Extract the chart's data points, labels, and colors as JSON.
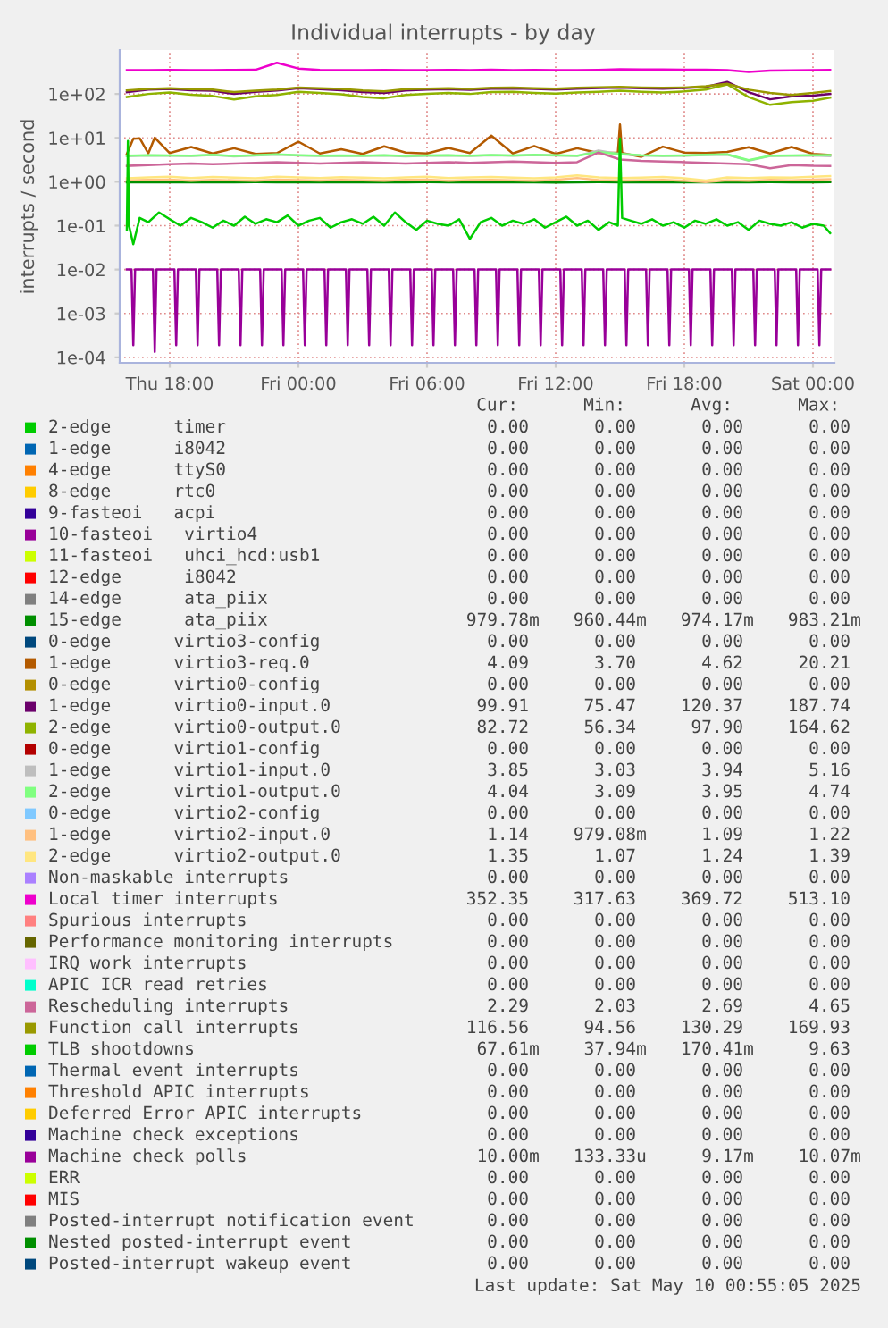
{
  "chart_data": {
    "type": "line",
    "title": "Individual interrupts - by day",
    "ylabel": "interrupts / second",
    "log": "y",
    "grid": true,
    "legend": "bottom",
    "xlim": [
      "2025-05-08T15:40",
      "2025-05-10T01:00"
    ],
    "ylim": [
      7.5e-05,
      1000
    ],
    "xticks": [
      {
        "value": "2025-05-08T18:00",
        "label": "Thu 18:00"
      },
      {
        "value": "2025-05-09T00:00",
        "label": "Fri 00:00"
      },
      {
        "value": "2025-05-09T06:00",
        "label": "Fri 06:00"
      },
      {
        "value": "2025-05-09T12:00",
        "label": "Fri 12:00"
      },
      {
        "value": "2025-05-09T18:00",
        "label": "Fri 18:00"
      },
      {
        "value": "2025-05-10T00:00",
        "label": "Sat 00:00"
      }
    ],
    "yticks": [
      {
        "value": 0.0001,
        "label": "1e-04"
      },
      {
        "value": 0.001,
        "label": "1e-03"
      },
      {
        "value": 0.01,
        "label": "1e-02"
      },
      {
        "value": 0.1,
        "label": "1e-01"
      },
      {
        "value": 1,
        "label": "1e+00"
      },
      {
        "value": 10,
        "label": "1e+01"
      },
      {
        "value": 100,
        "label": "1e+02"
      }
    ],
    "x": [
      "2025-05-08T16:00",
      "2025-05-08T17:00",
      "2025-05-08T18:00",
      "2025-05-08T19:00",
      "2025-05-08T20:00",
      "2025-05-08T21:00",
      "2025-05-08T22:00",
      "2025-05-08T23:00",
      "2025-05-09T00:00",
      "2025-05-09T01:00",
      "2025-05-09T02:00",
      "2025-05-09T03:00",
      "2025-05-09T04:00",
      "2025-05-09T05:00",
      "2025-05-09T06:00",
      "2025-05-09T07:00",
      "2025-05-09T08:00",
      "2025-05-09T09:00",
      "2025-05-09T10:00",
      "2025-05-09T11:00",
      "2025-05-09T12:00",
      "2025-05-09T13:00",
      "2025-05-09T14:00",
      "2025-05-09T15:00",
      "2025-05-09T16:00",
      "2025-05-09T17:00",
      "2025-05-09T18:00",
      "2025-05-09T19:00",
      "2025-05-09T20:00",
      "2025-05-09T21:00",
      "2025-05-09T22:00",
      "2025-05-09T23:00",
      "2025-05-10T00:00",
      "2025-05-10T00:48"
    ],
    "series": [
      {
        "name": "2-edge      timer",
        "color": "#00cc00",
        "values": [
          null,
          null,
          null,
          null,
          null,
          null,
          null,
          null,
          null,
          null,
          null,
          null,
          null,
          null,
          null,
          null,
          null,
          null,
          null,
          null,
          null,
          null,
          null,
          null,
          null,
          null,
          null,
          null,
          null,
          null,
          null,
          null,
          null,
          null
        ]
      },
      {
        "name": "1-edge      i8042",
        "color": "#0066b3",
        "values": [
          null,
          null,
          null,
          null,
          null,
          null,
          null,
          null,
          null,
          null,
          null,
          null,
          null,
          null,
          null,
          null,
          null,
          null,
          null,
          null,
          null,
          null,
          null,
          null,
          null,
          null,
          null,
          null,
          null,
          null,
          null,
          null,
          null,
          null
        ]
      },
      {
        "name": "4-edge      ttyS0",
        "color": "#ff8000",
        "values": [
          null,
          null,
          null,
          null,
          null,
          null,
          null,
          null,
          null,
          null,
          null,
          null,
          null,
          null,
          null,
          null,
          null,
          null,
          null,
          null,
          null,
          null,
          null,
          null,
          null,
          null,
          null,
          null,
          null,
          null,
          null,
          null,
          null,
          null
        ]
      },
      {
        "name": "8-edge      rtc0",
        "color": "#ffcc00",
        "values": [
          null,
          null,
          null,
          null,
          null,
          null,
          null,
          null,
          null,
          null,
          null,
          null,
          null,
          null,
          null,
          null,
          null,
          null,
          null,
          null,
          null,
          null,
          null,
          null,
          null,
          null,
          null,
          null,
          null,
          null,
          null,
          null,
          null,
          null
        ]
      },
      {
        "name": "9-fasteoi   acpi",
        "color": "#330099",
        "values": [
          null,
          null,
          null,
          null,
          null,
          null,
          null,
          null,
          null,
          null,
          null,
          null,
          null,
          null,
          null,
          null,
          null,
          null,
          null,
          null,
          null,
          null,
          null,
          null,
          null,
          null,
          null,
          null,
          null,
          null,
          null,
          null,
          null,
          null
        ]
      },
      {
        "name": "10-fasteoi   virtio4",
        "color": "#990099",
        "values": [
          null,
          null,
          null,
          null,
          null,
          null,
          null,
          null,
          null,
          null,
          null,
          null,
          null,
          null,
          null,
          null,
          null,
          null,
          null,
          null,
          null,
          null,
          null,
          null,
          null,
          null,
          null,
          null,
          null,
          null,
          null,
          null,
          null,
          null
        ]
      },
      {
        "name": "11-fasteoi   uhci_hcd:usb1",
        "color": "#ccff00",
        "values": [
          null,
          null,
          null,
          null,
          null,
          null,
          null,
          null,
          null,
          null,
          null,
          null,
          null,
          null,
          null,
          null,
          null,
          null,
          null,
          null,
          null,
          null,
          null,
          null,
          null,
          null,
          null,
          null,
          null,
          null,
          null,
          null,
          null,
          null
        ]
      },
      {
        "name": "12-edge      i8042",
        "color": "#ff0000",
        "values": [
          null,
          null,
          null,
          null,
          null,
          null,
          null,
          null,
          null,
          null,
          null,
          null,
          null,
          null,
          null,
          null,
          null,
          null,
          null,
          null,
          null,
          null,
          null,
          null,
          null,
          null,
          null,
          null,
          null,
          null,
          null,
          null,
          null,
          null
        ]
      },
      {
        "name": "14-edge      ata_piix",
        "color": "#808080",
        "values": [
          null,
          null,
          null,
          null,
          null,
          null,
          null,
          null,
          null,
          null,
          null,
          null,
          null,
          null,
          null,
          null,
          null,
          null,
          null,
          null,
          null,
          null,
          null,
          null,
          null,
          null,
          null,
          null,
          null,
          null,
          null,
          null,
          null,
          null
        ]
      },
      {
        "name": "15-edge      ata_piix",
        "color": "#008f00",
        "values": [
          0.975,
          0.972,
          0.976,
          0.974,
          0.97,
          0.975,
          0.978,
          0.973,
          0.975,
          0.972,
          0.976,
          0.974,
          0.97,
          0.975,
          0.98321,
          0.973,
          0.975,
          0.972,
          0.976,
          0.974,
          0.96044,
          0.975,
          0.978,
          0.973,
          0.975,
          0.972,
          0.976,
          0.974,
          0.97,
          0.975,
          0.978,
          0.973,
          0.975,
          0.97978
        ]
      },
      {
        "name": "0-edge      virtio3-config",
        "color": "#00487d",
        "values": [
          null,
          null,
          null,
          null,
          null,
          null,
          null,
          null,
          null,
          null,
          null,
          null,
          null,
          null,
          null,
          null,
          null,
          null,
          null,
          null,
          null,
          null,
          null,
          null,
          null,
          null,
          null,
          null,
          null,
          null,
          null,
          null,
          null,
          null
        ]
      },
      {
        "name": "1-edge      virtio3-req.0",
        "color": "#b35a00",
        "x": [
          "2025-05-08T16:00",
          "2025-05-08T16:18",
          "2025-05-08T16:36",
          "2025-05-08T17:00",
          "2025-05-08T17:18",
          "2025-05-08T18:00",
          "2025-05-08T19:00",
          "2025-05-08T20:00",
          "2025-05-08T21:00",
          "2025-05-08T22:00",
          "2025-05-08T23:00",
          "2025-05-09T00:00",
          "2025-05-09T01:00",
          "2025-05-09T02:00",
          "2025-05-09T03:00",
          "2025-05-09T04:00",
          "2025-05-09T05:00",
          "2025-05-09T06:00",
          "2025-05-09T07:00",
          "2025-05-09T08:00",
          "2025-05-09T09:00",
          "2025-05-09T10:00",
          "2025-05-09T11:00",
          "2025-05-09T12:00",
          "2025-05-09T13:00",
          "2025-05-09T14:00",
          "2025-05-09T14:54",
          "2025-05-09T15:00",
          "2025-05-09T15:06",
          "2025-05-09T16:00",
          "2025-05-09T17:00",
          "2025-05-09T18:00",
          "2025-05-09T19:00",
          "2025-05-09T20:00",
          "2025-05-09T21:00",
          "2025-05-09T22:00",
          "2025-05-09T23:00",
          "2025-05-10T00:00",
          "2025-05-10T00:48"
        ],
        "values": [
          4.3,
          9.5,
          9.8,
          4.4,
          10.1,
          4.5,
          6.2,
          4.4,
          5.8,
          4.3,
          4.5,
          8.2,
          4.4,
          5.5,
          4.3,
          6.4,
          4.6,
          4.4,
          5.9,
          4.5,
          11.2,
          4.4,
          6.5,
          4.3,
          5.8,
          4.5,
          4.6,
          20.21,
          4.5,
          3.7,
          6.3,
          4.6,
          4.5,
          4.8,
          6.1,
          4.4,
          6.2,
          4.3,
          4.09
        ]
      },
      {
        "name": "0-edge      virtio0-config",
        "color": "#b38f00",
        "values": [
          null,
          null,
          null,
          null,
          null,
          null,
          null,
          null,
          null,
          null,
          null,
          null,
          null,
          null,
          null,
          null,
          null,
          null,
          null,
          null,
          null,
          null,
          null,
          null,
          null,
          null,
          null,
          null,
          null,
          null,
          null,
          null,
          null,
          null
        ]
      },
      {
        "name": "1-edge      virtio0-input.0",
        "color": "#6b006b",
        "values": [
          110,
          125,
          130,
          122,
          118,
          100,
          112,
          120,
          135,
          128,
          122,
          110,
          105,
          120,
          125,
          128,
          124,
          132,
          134,
          130,
          126,
          132,
          136,
          140,
          135,
          132,
          136,
          145,
          187.74,
          110,
          75.47,
          88,
          92,
          99.91
        ]
      },
      {
        "name": "2-edge      virtio0-output.0",
        "color": "#8fb300",
        "values": [
          85,
          100,
          108,
          96,
          90,
          75,
          88,
          95,
          112,
          105,
          98,
          85,
          80,
          95,
          100,
          105,
          100,
          110,
          112,
          106,
          102,
          108,
          112,
          118,
          112,
          108,
          114,
          125,
          164.62,
          85,
          56.34,
          65,
          70,
          82.72
        ]
      },
      {
        "name": "0-edge      virtio1-config",
        "color": "#b30000",
        "values": [
          null,
          null,
          null,
          null,
          null,
          null,
          null,
          null,
          null,
          null,
          null,
          null,
          null,
          null,
          null,
          null,
          null,
          null,
          null,
          null,
          null,
          null,
          null,
          null,
          null,
          null,
          null,
          null,
          null,
          null,
          null,
          null,
          null,
          null
        ]
      },
      {
        "name": "1-edge      virtio1-input.0",
        "color": "#bebebe",
        "values": [
          3.85,
          3.95,
          3.9,
          3.85,
          4.05,
          3.8,
          3.95,
          4.15,
          3.95,
          3.85,
          3.9,
          3.85,
          3.95,
          3.8,
          3.9,
          3.95,
          3.85,
          4.0,
          3.9,
          4.05,
          3.95,
          3.85,
          5.16,
          4.25,
          3.95,
          3.85,
          3.9,
          4.05,
          4.15,
          3.03,
          3.85,
          3.9,
          3.95,
          3.85
        ]
      },
      {
        "name": "2-edge      virtio1-output.0",
        "color": "#80ff80",
        "values": [
          3.9,
          4.0,
          3.95,
          3.9,
          4.1,
          3.85,
          4.0,
          4.2,
          4.0,
          3.9,
          3.95,
          3.9,
          4.0,
          3.85,
          3.95,
          4.0,
          3.9,
          4.05,
          3.95,
          4.1,
          4.0,
          3.9,
          4.74,
          4.3,
          4.0,
          3.9,
          3.95,
          4.1,
          4.2,
          3.09,
          3.9,
          3.95,
          4.0,
          4.04
        ]
      },
      {
        "name": "0-edge      virtio2-config",
        "color": "#80c9ff",
        "values": [
          null,
          null,
          null,
          null,
          null,
          null,
          null,
          null,
          null,
          null,
          null,
          null,
          null,
          null,
          null,
          null,
          null,
          null,
          null,
          null,
          null,
          null,
          null,
          null,
          null,
          null,
          null,
          null,
          null,
          null,
          null,
          null,
          null,
          null
        ]
      },
      {
        "name": "1-edge      virtio2-input.0",
        "color": "#ffc080",
        "values": [
          1.08,
          1.1,
          1.12,
          1.06,
          1.1,
          1.08,
          1.05,
          1.12,
          1.09,
          1.07,
          1.11,
          1.08,
          1.05,
          1.1,
          1.12,
          1.06,
          1.09,
          1.1,
          1.08,
          1.05,
          1.1,
          1.22,
          1.09,
          1.07,
          1.08,
          1.1,
          1.05,
          0.97908,
          1.08,
          1.06,
          1.1,
          1.08,
          1.12,
          1.14
        ]
      },
      {
        "name": "2-edge      virtio2-output.0",
        "color": "#ffe680",
        "values": [
          1.2,
          1.25,
          1.3,
          1.22,
          1.28,
          1.24,
          1.2,
          1.3,
          1.25,
          1.22,
          1.27,
          1.24,
          1.2,
          1.26,
          1.3,
          1.22,
          1.25,
          1.28,
          1.24,
          1.2,
          1.26,
          1.39,
          1.25,
          1.22,
          1.24,
          1.28,
          1.2,
          1.07,
          1.25,
          1.22,
          1.26,
          1.24,
          1.3,
          1.35
        ]
      },
      {
        "name": "Non-maskable interrupts",
        "color": "#aa80ff",
        "values": [
          null,
          null,
          null,
          null,
          null,
          null,
          null,
          null,
          null,
          null,
          null,
          null,
          null,
          null,
          null,
          null,
          null,
          null,
          null,
          null,
          null,
          null,
          null,
          null,
          null,
          null,
          null,
          null,
          null,
          null,
          null,
          null,
          null,
          null
        ]
      },
      {
        "name": "Local timer interrupts",
        "color": "#ee00cc",
        "values": [
          350,
          348,
          352,
          350,
          348,
          352,
          355,
          513.1,
          380,
          352,
          348,
          350,
          352,
          350,
          348,
          352,
          350,
          355,
          350,
          352,
          350,
          348,
          352,
          365,
          360,
          362,
          358,
          355,
          350,
          317.63,
          340,
          345,
          350,
          352.35
        ]
      },
      {
        "name": "Spurious interrupts",
        "color": "#ff8080",
        "values": [
          null,
          null,
          null,
          null,
          null,
          null,
          null,
          null,
          null,
          null,
          null,
          null,
          null,
          null,
          null,
          null,
          null,
          null,
          null,
          null,
          null,
          null,
          null,
          null,
          null,
          null,
          null,
          null,
          null,
          null,
          null,
          null,
          null,
          null
        ]
      },
      {
        "name": "Performance monitoring interrupts",
        "color": "#666600",
        "values": [
          null,
          null,
          null,
          null,
          null,
          null,
          null,
          null,
          null,
          null,
          null,
          null,
          null,
          null,
          null,
          null,
          null,
          null,
          null,
          null,
          null,
          null,
          null,
          null,
          null,
          null,
          null,
          null,
          null,
          null,
          null,
          null,
          null,
          null
        ]
      },
      {
        "name": "IRQ work interrupts",
        "color": "#ffbfff",
        "values": [
          null,
          null,
          null,
          null,
          null,
          null,
          null,
          null,
          null,
          null,
          null,
          null,
          null,
          null,
          null,
          null,
          null,
          null,
          null,
          null,
          null,
          null,
          null,
          null,
          null,
          null,
          null,
          null,
          null,
          null,
          null,
          null,
          null,
          null
        ]
      },
      {
        "name": "APIC ICR read retries",
        "color": "#00ffcc",
        "values": [
          null,
          null,
          null,
          null,
          null,
          null,
          null,
          null,
          null,
          null,
          null,
          null,
          null,
          null,
          null,
          null,
          null,
          null,
          null,
          null,
          null,
          null,
          null,
          null,
          null,
          null,
          null,
          null,
          null,
          null,
          null,
          null,
          null,
          null
        ]
      },
      {
        "name": "Rescheduling interrupts",
        "color": "#cc6699",
        "values": [
          2.3,
          2.4,
          2.5,
          2.6,
          2.5,
          2.6,
          2.7,
          2.8,
          2.7,
          2.6,
          2.7,
          2.8,
          2.7,
          2.6,
          2.7,
          2.8,
          2.7,
          2.8,
          2.9,
          2.8,
          2.7,
          2.8,
          4.65,
          3.2,
          3.0,
          2.9,
          2.8,
          2.7,
          2.6,
          2.5,
          2.03,
          2.4,
          2.3,
          2.29
        ]
      },
      {
        "name": "Function call interrupts",
        "color": "#999900",
        "values": [
          120,
          130,
          135,
          128,
          125,
          110,
          118,
          125,
          140,
          135,
          130,
          120,
          115,
          128,
          132,
          135,
          130,
          138,
          140,
          135,
          132,
          138,
          142,
          145,
          140,
          138,
          140,
          150,
          169.93,
          125,
          105,
          94.56,
          105,
          116.56
        ]
      },
      {
        "name": "TLB shootdowns",
        "color": "#00cc00",
        "x": [
          "2025-05-08T16:00",
          "2025-05-08T16:03",
          "2025-05-08T16:06",
          "2025-05-08T16:18",
          "2025-05-08T16:36",
          "2025-05-08T17:00",
          "2025-05-08T17:30",
          "2025-05-08T18:00",
          "2025-05-08T18:30",
          "2025-05-08T19:00",
          "2025-05-08T19:30",
          "2025-05-08T20:00",
          "2025-05-08T20:30",
          "2025-05-08T21:00",
          "2025-05-08T21:30",
          "2025-05-08T22:00",
          "2025-05-08T22:30",
          "2025-05-08T23:00",
          "2025-05-08T23:30",
          "2025-05-09T00:00",
          "2025-05-09T00:30",
          "2025-05-09T01:00",
          "2025-05-09T01:30",
          "2025-05-09T02:00",
          "2025-05-09T02:30",
          "2025-05-09T03:00",
          "2025-05-09T03:30",
          "2025-05-09T04:00",
          "2025-05-09T04:30",
          "2025-05-09T05:00",
          "2025-05-09T05:30",
          "2025-05-09T06:00",
          "2025-05-09T06:30",
          "2025-05-09T07:00",
          "2025-05-09T07:30",
          "2025-05-09T08:00",
          "2025-05-09T08:30",
          "2025-05-09T09:00",
          "2025-05-09T09:30",
          "2025-05-09T10:00",
          "2025-05-09T10:30",
          "2025-05-09T11:00",
          "2025-05-09T11:30",
          "2025-05-09T12:00",
          "2025-05-09T12:30",
          "2025-05-09T13:00",
          "2025-05-09T13:30",
          "2025-05-09T14:00",
          "2025-05-09T14:30",
          "2025-05-09T14:54",
          "2025-05-09T15:00",
          "2025-05-09T15:06",
          "2025-05-09T15:30",
          "2025-05-09T16:00",
          "2025-05-09T16:30",
          "2025-05-09T17:00",
          "2025-05-09T17:30",
          "2025-05-09T18:00",
          "2025-05-09T18:30",
          "2025-05-09T19:00",
          "2025-05-09T19:30",
          "2025-05-09T20:00",
          "2025-05-09T20:30",
          "2025-05-09T21:00",
          "2025-05-09T21:30",
          "2025-05-09T22:00",
          "2025-05-09T22:30",
          "2025-05-09T23:00",
          "2025-05-09T23:30",
          "2025-05-10T00:00",
          "2025-05-10T00:30",
          "2025-05-10T00:48"
        ],
        "values": [
          0.08,
          8.5,
          0.1,
          0.03794,
          0.15,
          0.12,
          0.2,
          0.14,
          0.1,
          0.15,
          0.12,
          0.09,
          0.13,
          0.1,
          0.16,
          0.11,
          0.14,
          0.12,
          0.17,
          0.1,
          0.13,
          0.15,
          0.09,
          0.12,
          0.14,
          0.11,
          0.16,
          0.1,
          0.2,
          0.12,
          0.08,
          0.13,
          0.11,
          0.1,
          0.14,
          0.05,
          0.12,
          0.15,
          0.1,
          0.13,
          0.11,
          0.14,
          0.09,
          0.12,
          0.16,
          0.1,
          0.13,
          0.08,
          0.12,
          0.1,
          9.63,
          0.15,
          0.13,
          0.11,
          0.14,
          0.1,
          0.12,
          0.09,
          0.13,
          0.11,
          0.14,
          0.1,
          0.12,
          0.08,
          0.13,
          0.11,
          0.1,
          0.12,
          0.09,
          0.11,
          0.1,
          0.06761
        ]
      },
      {
        "name": "Thermal event interrupts",
        "color": "#0066b3",
        "values": [
          null,
          null,
          null,
          null,
          null,
          null,
          null,
          null,
          null,
          null,
          null,
          null,
          null,
          null,
          null,
          null,
          null,
          null,
          null,
          null,
          null,
          null,
          null,
          null,
          null,
          null,
          null,
          null,
          null,
          null,
          null,
          null,
          null,
          null
        ]
      },
      {
        "name": "Threshold APIC interrupts",
        "color": "#ff8000",
        "values": [
          null,
          null,
          null,
          null,
          null,
          null,
          null,
          null,
          null,
          null,
          null,
          null,
          null,
          null,
          null,
          null,
          null,
          null,
          null,
          null,
          null,
          null,
          null,
          null,
          null,
          null,
          null,
          null,
          null,
          null,
          null,
          null,
          null,
          null
        ]
      },
      {
        "name": "Deferred Error APIC interrupts",
        "color": "#ffcc00",
        "values": [
          null,
          null,
          null,
          null,
          null,
          null,
          null,
          null,
          null,
          null,
          null,
          null,
          null,
          null,
          null,
          null,
          null,
          null,
          null,
          null,
          null,
          null,
          null,
          null,
          null,
          null,
          null,
          null,
          null,
          null,
          null,
          null,
          null,
          null
        ]
      },
      {
        "name": "Machine check exceptions",
        "color": "#330099",
        "values": [
          null,
          null,
          null,
          null,
          null,
          null,
          null,
          null,
          null,
          null,
          null,
          null,
          null,
          null,
          null,
          null,
          null,
          null,
          null,
          null,
          null,
          null,
          null,
          null,
          null,
          null,
          null,
          null,
          null,
          null,
          null,
          null,
          null,
          null
        ]
      },
      {
        "name": "Machine check polls",
        "color": "#990099",
        "x": [
          "2025-05-08T16:00",
          "2025-05-08T16:13",
          "2025-05-08T16:18",
          "2025-05-08T16:23",
          "2025-05-08T17:13",
          "2025-05-08T17:18",
          "2025-05-08T17:23",
          "2025-05-08T18:13",
          "2025-05-08T18:18",
          "2025-05-08T18:23",
          "2025-05-08T19:13",
          "2025-05-08T19:18",
          "2025-05-08T19:23",
          "2025-05-08T20:13",
          "2025-05-08T20:18",
          "2025-05-08T20:23",
          "2025-05-08T21:13",
          "2025-05-08T21:18",
          "2025-05-08T21:23",
          "2025-05-08T22:13",
          "2025-05-08T22:18",
          "2025-05-08T22:23",
          "2025-05-08T23:13",
          "2025-05-08T23:18",
          "2025-05-08T23:23",
          "2025-05-09T00:13",
          "2025-05-09T00:18",
          "2025-05-09T00:23",
          "2025-05-09T01:13",
          "2025-05-09T01:18",
          "2025-05-09T01:23",
          "2025-05-09T02:13",
          "2025-05-09T02:18",
          "2025-05-09T02:23",
          "2025-05-09T03:13",
          "2025-05-09T03:18",
          "2025-05-09T03:23",
          "2025-05-09T04:13",
          "2025-05-09T04:18",
          "2025-05-09T04:23",
          "2025-05-09T05:13",
          "2025-05-09T05:18",
          "2025-05-09T05:23",
          "2025-05-09T06:13",
          "2025-05-09T06:18",
          "2025-05-09T06:23",
          "2025-05-09T07:13",
          "2025-05-09T07:18",
          "2025-05-09T07:23",
          "2025-05-09T08:13",
          "2025-05-09T08:18",
          "2025-05-09T08:23",
          "2025-05-09T09:13",
          "2025-05-09T09:18",
          "2025-05-09T09:23",
          "2025-05-09T10:13",
          "2025-05-09T10:18",
          "2025-05-09T10:23",
          "2025-05-09T11:13",
          "2025-05-09T11:18",
          "2025-05-09T11:23",
          "2025-05-09T12:13",
          "2025-05-09T12:18",
          "2025-05-09T12:23",
          "2025-05-09T13:13",
          "2025-05-09T13:18",
          "2025-05-09T13:23",
          "2025-05-09T14:13",
          "2025-05-09T14:18",
          "2025-05-09T14:23",
          "2025-05-09T15:13",
          "2025-05-09T15:18",
          "2025-05-09T15:23",
          "2025-05-09T16:13",
          "2025-05-09T16:18",
          "2025-05-09T16:23",
          "2025-05-09T17:13",
          "2025-05-09T17:18",
          "2025-05-09T17:23",
          "2025-05-09T18:13",
          "2025-05-09T18:18",
          "2025-05-09T18:23",
          "2025-05-09T19:13",
          "2025-05-09T19:18",
          "2025-05-09T19:23",
          "2025-05-09T20:13",
          "2025-05-09T20:18",
          "2025-05-09T20:23",
          "2025-05-09T21:13",
          "2025-05-09T21:18",
          "2025-05-09T21:23",
          "2025-05-09T22:13",
          "2025-05-09T22:18",
          "2025-05-09T22:23",
          "2025-05-09T23:13",
          "2025-05-09T23:18",
          "2025-05-09T23:23",
          "2025-05-10T00:13",
          "2025-05-10T00:18",
          "2025-05-10T00:23",
          "2025-05-10T00:48"
        ],
        "values": [
          0.01,
          0.01,
          0.00019,
          0.01,
          0.01,
          0.00013333,
          0.01,
          0.01,
          0.00019,
          0.01,
          0.01,
          0.00019,
          0.01,
          0.01,
          0.00019,
          0.01,
          0.01,
          0.00019,
          0.01,
          0.01,
          0.00019,
          0.01,
          0.01,
          0.00019,
          0.01,
          0.01,
          0.00019,
          0.01,
          0.01,
          0.00019,
          0.01,
          0.01,
          0.00019,
          0.01,
          0.01,
          0.00019,
          0.01,
          0.01,
          0.00019,
          0.01,
          0.01,
          0.00019,
          0.01,
          0.01,
          0.00019,
          0.01,
          0.01,
          0.00019,
          0.01,
          0.01,
          0.00019,
          0.01,
          0.01,
          0.00019,
          0.01,
          0.01,
          0.00019,
          0.01007,
          0.01,
          0.00019,
          0.01,
          0.01,
          0.00019,
          0.01,
          0.01,
          0.00019,
          0.01,
          0.01,
          0.00019,
          0.01,
          0.01,
          0.00019,
          0.01,
          0.01,
          0.00019,
          0.01,
          0.01,
          0.00019,
          0.01,
          0.01,
          0.00019,
          0.01,
          0.01,
          0.00019,
          0.01,
          0.01,
          0.00019,
          0.01,
          0.01,
          0.00019,
          0.01,
          0.01,
          0.00019,
          0.01,
          0.01,
          0.00019,
          0.01,
          0.01,
          0.00019,
          0.01,
          0.01
        ]
      },
      {
        "name": "ERR",
        "color": "#ccff00",
        "values": [
          null,
          null,
          null,
          null,
          null,
          null,
          null,
          null,
          null,
          null,
          null,
          null,
          null,
          null,
          null,
          null,
          null,
          null,
          null,
          null,
          null,
          null,
          null,
          null,
          null,
          null,
          null,
          null,
          null,
          null,
          null,
          null,
          null,
          null
        ]
      },
      {
        "name": "MIS",
        "color": "#ff0000",
        "values": [
          null,
          null,
          null,
          null,
          null,
          null,
          null,
          null,
          null,
          null,
          null,
          null,
          null,
          null,
          null,
          null,
          null,
          null,
          null,
          null,
          null,
          null,
          null,
          null,
          null,
          null,
          null,
          null,
          null,
          null,
          null,
          null,
          null,
          null
        ]
      },
      {
        "name": "Posted-interrupt notification event",
        "color": "#808080",
        "values": [
          null,
          null,
          null,
          null,
          null,
          null,
          null,
          null,
          null,
          null,
          null,
          null,
          null,
          null,
          null,
          null,
          null,
          null,
          null,
          null,
          null,
          null,
          null,
          null,
          null,
          null,
          null,
          null,
          null,
          null,
          null,
          null,
          null,
          null
        ]
      },
      {
        "name": "Nested posted-interrupt event",
        "color": "#008f00",
        "values": [
          null,
          null,
          null,
          null,
          null,
          null,
          null,
          null,
          null,
          null,
          null,
          null,
          null,
          null,
          null,
          null,
          null,
          null,
          null,
          null,
          null,
          null,
          null,
          null,
          null,
          null,
          null,
          null,
          null,
          null,
          null,
          null,
          null,
          null
        ]
      },
      {
        "name": "Posted-interrupt wakeup event",
        "color": "#00487d",
        "values": [
          null,
          null,
          null,
          null,
          null,
          null,
          null,
          null,
          null,
          null,
          null,
          null,
          null,
          null,
          null,
          null,
          null,
          null,
          null,
          null,
          null,
          null,
          null,
          null,
          null,
          null,
          null,
          null,
          null,
          null,
          null,
          null,
          null,
          null
        ]
      }
    ],
    "annotations": [
      "Cur:",
      "Min:",
      "Avg:",
      "Max:",
      "0.00",
      "0.00",
      "0.00",
      "0.00",
      "0.00",
      "0.00",
      "0.00",
      "0.00",
      "0.00",
      "0.00",
      "0.00",
      "0.00",
      "0.00",
      "0.00",
      "0.00",
      "0.00",
      "0.00",
      "0.00",
      "0.00",
      "0.00",
      "0.00",
      "0.00",
      "0.00",
      "0.00",
      "0.00",
      "0.00",
      "0.00",
      "0.00",
      "0.00",
      "0.00",
      "0.00",
      "0.00",
      "0.00",
      "0.00",
      "0.00",
      "0.00",
      "979.78m",
      "960.44m",
      "974.17m",
      "983.21m",
      "0.00",
      "0.00",
      "0.00",
      "0.00",
      "4.09",
      "3.70",
      "4.62",
      "20.21",
      "0.00",
      "0.00",
      "0.00",
      "0.00",
      "99.91",
      "75.47",
      "120.37",
      "187.74",
      "82.72",
      "56.34",
      "97.90",
      "164.62",
      "0.00",
      "0.00",
      "0.00",
      "0.00",
      "3.85",
      "3.03",
      "3.94",
      "5.16",
      "4.04",
      "3.09",
      "3.95",
      "4.74",
      "0.00",
      "0.00",
      "0.00",
      "0.00",
      "1.14",
      "979.08m",
      "1.09",
      "1.22",
      "1.35",
      "1.07",
      "1.24",
      "1.39",
      "0.00",
      "0.00",
      "0.00",
      "0.00",
      "352.35",
      "317.63",
      "369.72",
      "513.10",
      "0.00",
      "0.00",
      "0.00",
      "0.00",
      "0.00",
      "0.00",
      "0.00",
      "0.00",
      "0.00",
      "0.00",
      "0.00",
      "0.00",
      "0.00",
      "0.00",
      "0.00",
      "0.00",
      "2.29",
      "2.03",
      "2.69",
      "4.65",
      "116.56",
      "94.56",
      "130.29",
      "169.93",
      "67.61m",
      "37.94m",
      "170.41m",
      "9.63",
      "0.00",
      "0.00",
      "0.00",
      "0.00",
      "0.00",
      "0.00",
      "0.00",
      "0.00",
      "0.00",
      "0.00",
      "0.00",
      "0.00",
      "0.00",
      "0.00",
      "0.00",
      "0.00",
      "10.00m",
      "133.33u",
      "9.17m",
      "10.07m",
      "0.00",
      "0.00",
      "0.00",
      "0.00",
      "0.00",
      "0.00",
      "0.00",
      "0.00",
      "0.00",
      "0.00",
      "0.00",
      "0.00",
      "0.00",
      "0.00",
      "0.00",
      "0.00",
      "0.00",
      "0.00",
      "0.00",
      "0.00",
      "Last update: Sat May 10 00:55:05 2025"
    ]
  }
}
